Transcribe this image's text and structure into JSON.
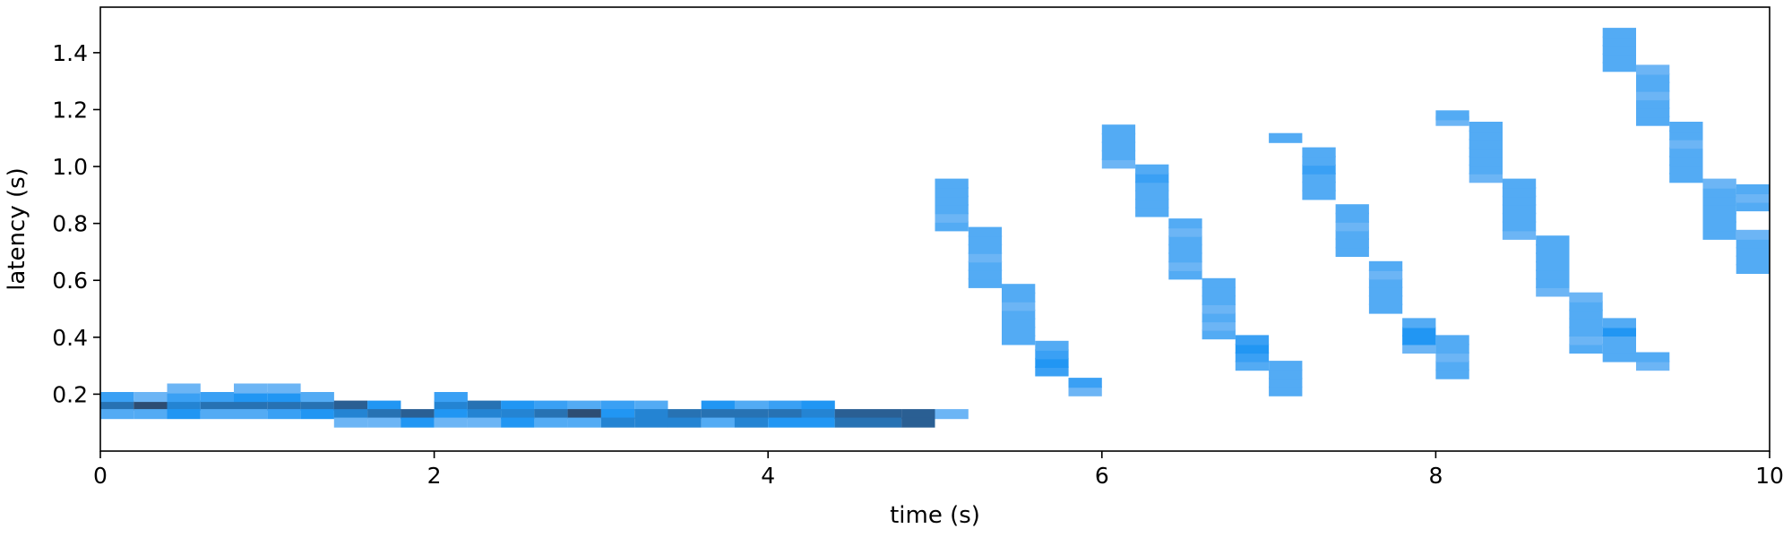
{
  "chart_data": {
    "type": "heatmap",
    "title": "",
    "xlabel": "time (s)",
    "ylabel": "latency (s)",
    "xlim": [
      0,
      10
    ],
    "ylim": [
      0,
      1.56
    ],
    "x_ticks": [
      "0",
      "2",
      "4",
      "6",
      "8",
      "10"
    ],
    "y_ticks": [
      "0.2",
      "0.4",
      "0.6",
      "0.8",
      "1.0",
      "1.2",
      "1.4"
    ],
    "x_tick_values": [
      0,
      2,
      4,
      6,
      8,
      10
    ],
    "y_tick_values": [
      0.2,
      0.4,
      0.6,
      0.8,
      1.0,
      1.2,
      1.4
    ],
    "grid": false,
    "legend": "none",
    "bin_width": 0.2,
    "bin_height": 0.035,
    "cells": [
      [
        0.0,
        0.16,
        0.8
      ],
      [
        0.0,
        0.13,
        0.4
      ],
      [
        0.0,
        0.19,
        0.5
      ],
      [
        0.2,
        0.16,
        1.0
      ],
      [
        0.2,
        0.13,
        0.4
      ],
      [
        0.2,
        0.19,
        0.3
      ],
      [
        0.4,
        0.16,
        0.7
      ],
      [
        0.4,
        0.13,
        0.6
      ],
      [
        0.4,
        0.19,
        0.5
      ],
      [
        0.4,
        0.22,
        0.3
      ],
      [
        0.6,
        0.16,
        0.8
      ],
      [
        0.6,
        0.13,
        0.4
      ],
      [
        0.6,
        0.19,
        0.5
      ],
      [
        0.8,
        0.16,
        0.8
      ],
      [
        0.8,
        0.13,
        0.4
      ],
      [
        0.8,
        0.19,
        0.6
      ],
      [
        0.8,
        0.22,
        0.3
      ],
      [
        1.0,
        0.16,
        0.8
      ],
      [
        1.0,
        0.13,
        0.5
      ],
      [
        1.0,
        0.19,
        0.6
      ],
      [
        1.0,
        0.22,
        0.3
      ],
      [
        1.2,
        0.16,
        0.8
      ],
      [
        1.2,
        0.13,
        0.6
      ],
      [
        1.2,
        0.19,
        0.4
      ],
      [
        1.4,
        0.16,
        0.9
      ],
      [
        1.4,
        0.13,
        0.7
      ],
      [
        1.4,
        0.1,
        0.3
      ],
      [
        1.6,
        0.16,
        0.6
      ],
      [
        1.6,
        0.13,
        0.8
      ],
      [
        1.6,
        0.1,
        0.3
      ],
      [
        1.8,
        0.13,
        0.9
      ],
      [
        1.8,
        0.1,
        0.6
      ],
      [
        2.0,
        0.16,
        0.7
      ],
      [
        2.0,
        0.13,
        0.6
      ],
      [
        2.0,
        0.19,
        0.5
      ],
      [
        2.0,
        0.1,
        0.3
      ],
      [
        2.2,
        0.16,
        0.8
      ],
      [
        2.2,
        0.13,
        0.7
      ],
      [
        2.2,
        0.1,
        0.3
      ],
      [
        2.4,
        0.16,
        0.6
      ],
      [
        2.4,
        0.13,
        0.7
      ],
      [
        2.4,
        0.1,
        0.6
      ],
      [
        2.6,
        0.16,
        0.5
      ],
      [
        2.6,
        0.13,
        0.8
      ],
      [
        2.6,
        0.1,
        0.4
      ],
      [
        2.8,
        0.16,
        0.4
      ],
      [
        2.8,
        0.13,
        1.0
      ],
      [
        2.8,
        0.1,
        0.4
      ],
      [
        3.0,
        0.16,
        0.5
      ],
      [
        3.0,
        0.13,
        0.6
      ],
      [
        3.0,
        0.1,
        0.7
      ],
      [
        3.2,
        0.16,
        0.4
      ],
      [
        3.2,
        0.13,
        0.7
      ],
      [
        3.2,
        0.1,
        0.7
      ],
      [
        3.4,
        0.13,
        0.8
      ],
      [
        3.4,
        0.1,
        0.7
      ],
      [
        3.6,
        0.16,
        0.6
      ],
      [
        3.6,
        0.13,
        0.8
      ],
      [
        3.6,
        0.1,
        0.4
      ],
      [
        3.8,
        0.16,
        0.4
      ],
      [
        3.8,
        0.13,
        0.8
      ],
      [
        3.8,
        0.1,
        0.7
      ],
      [
        4.0,
        0.16,
        0.5
      ],
      [
        4.0,
        0.13,
        0.8
      ],
      [
        4.0,
        0.1,
        0.6
      ],
      [
        4.2,
        0.16,
        0.6
      ],
      [
        4.2,
        0.13,
        0.7
      ],
      [
        4.2,
        0.1,
        0.6
      ],
      [
        4.4,
        0.13,
        0.9
      ],
      [
        4.4,
        0.1,
        0.8
      ],
      [
        4.6,
        0.13,
        0.9
      ],
      [
        4.6,
        0.1,
        0.8
      ],
      [
        4.8,
        0.13,
        0.9
      ],
      [
        4.8,
        0.1,
        0.9
      ],
      [
        5.0,
        0.13,
        0.3
      ],
      [
        5.0,
        0.79,
        0.4
      ],
      [
        5.0,
        0.82,
        0.3
      ],
      [
        5.0,
        0.85,
        0.4
      ],
      [
        5.0,
        0.88,
        0.4
      ],
      [
        5.0,
        0.91,
        0.4
      ],
      [
        5.0,
        0.94,
        0.4
      ],
      [
        5.2,
        0.59,
        0.4
      ],
      [
        5.2,
        0.62,
        0.4
      ],
      [
        5.2,
        0.65,
        0.4
      ],
      [
        5.2,
        0.68,
        0.3
      ],
      [
        5.2,
        0.71,
        0.4
      ],
      [
        5.2,
        0.74,
        0.4
      ],
      [
        5.2,
        0.77,
        0.4
      ],
      [
        5.4,
        0.39,
        0.4
      ],
      [
        5.4,
        0.42,
        0.4
      ],
      [
        5.4,
        0.45,
        0.4
      ],
      [
        5.4,
        0.48,
        0.4
      ],
      [
        5.4,
        0.51,
        0.3
      ],
      [
        5.4,
        0.54,
        0.4
      ],
      [
        5.4,
        0.57,
        0.4
      ],
      [
        5.6,
        0.28,
        0.5
      ],
      [
        5.6,
        0.31,
        0.6
      ],
      [
        5.6,
        0.34,
        0.5
      ],
      [
        5.6,
        0.37,
        0.4
      ],
      [
        5.8,
        0.21,
        0.3
      ],
      [
        5.8,
        0.24,
        0.5
      ],
      [
        6.0,
        1.01,
        0.3
      ],
      [
        6.0,
        1.04,
        0.4
      ],
      [
        6.0,
        1.07,
        0.4
      ],
      [
        6.0,
        1.1,
        0.4
      ],
      [
        6.0,
        1.13,
        0.4
      ],
      [
        6.2,
        0.84,
        0.4
      ],
      [
        6.2,
        0.87,
        0.4
      ],
      [
        6.2,
        0.9,
        0.4
      ],
      [
        6.2,
        0.93,
        0.4
      ],
      [
        6.2,
        0.96,
        0.5
      ],
      [
        6.2,
        0.99,
        0.4
      ],
      [
        6.4,
        0.62,
        0.4
      ],
      [
        6.4,
        0.65,
        0.3
      ],
      [
        6.4,
        0.68,
        0.4
      ],
      [
        6.4,
        0.71,
        0.4
      ],
      [
        6.4,
        0.74,
        0.4
      ],
      [
        6.4,
        0.77,
        0.3
      ],
      [
        6.4,
        0.8,
        0.4
      ],
      [
        6.6,
        0.41,
        0.4
      ],
      [
        6.6,
        0.44,
        0.3
      ],
      [
        6.6,
        0.47,
        0.4
      ],
      [
        6.6,
        0.5,
        0.3
      ],
      [
        6.6,
        0.53,
        0.4
      ],
      [
        6.6,
        0.56,
        0.4
      ],
      [
        6.6,
        0.59,
        0.4
      ],
      [
        6.8,
        0.3,
        0.4
      ],
      [
        6.8,
        0.33,
        0.5
      ],
      [
        6.8,
        0.36,
        0.6
      ],
      [
        6.8,
        0.39,
        0.5
      ],
      [
        7.0,
        0.21,
        0.4
      ],
      [
        7.0,
        0.24,
        0.4
      ],
      [
        7.0,
        0.27,
        0.4
      ],
      [
        7.0,
        0.3,
        0.4
      ],
      [
        7.0,
        1.1,
        0.4
      ],
      [
        7.2,
        0.9,
        0.4
      ],
      [
        7.2,
        0.93,
        0.4
      ],
      [
        7.2,
        0.96,
        0.4
      ],
      [
        7.2,
        0.99,
        0.5
      ],
      [
        7.2,
        1.02,
        0.4
      ],
      [
        7.2,
        1.05,
        0.4
      ],
      [
        7.4,
        0.7,
        0.4
      ],
      [
        7.4,
        0.73,
        0.4
      ],
      [
        7.4,
        0.76,
        0.4
      ],
      [
        7.4,
        0.79,
        0.3
      ],
      [
        7.4,
        0.82,
        0.4
      ],
      [
        7.4,
        0.85,
        0.4
      ],
      [
        7.6,
        0.5,
        0.4
      ],
      [
        7.6,
        0.53,
        0.4
      ],
      [
        7.6,
        0.56,
        0.4
      ],
      [
        7.6,
        0.59,
        0.4
      ],
      [
        7.6,
        0.62,
        0.3
      ],
      [
        7.6,
        0.65,
        0.4
      ],
      [
        7.8,
        0.36,
        0.3
      ],
      [
        7.8,
        0.39,
        0.6
      ],
      [
        7.8,
        0.42,
        0.6
      ],
      [
        7.8,
        0.45,
        0.4
      ],
      [
        8.0,
        0.27,
        0.4
      ],
      [
        8.0,
        0.3,
        0.4
      ],
      [
        8.0,
        0.33,
        0.3
      ],
      [
        8.0,
        0.36,
        0.4
      ],
      [
        8.0,
        0.39,
        0.4
      ],
      [
        8.0,
        1.16,
        0.3
      ],
      [
        8.0,
        1.18,
        0.4
      ],
      [
        8.2,
        0.96,
        0.3
      ],
      [
        8.2,
        0.99,
        0.4
      ],
      [
        8.2,
        1.02,
        0.4
      ],
      [
        8.2,
        1.05,
        0.4
      ],
      [
        8.2,
        1.08,
        0.4
      ],
      [
        8.2,
        1.11,
        0.4
      ],
      [
        8.2,
        1.14,
        0.4
      ],
      [
        8.4,
        0.76,
        0.3
      ],
      [
        8.4,
        0.79,
        0.4
      ],
      [
        8.4,
        0.82,
        0.4
      ],
      [
        8.4,
        0.85,
        0.4
      ],
      [
        8.4,
        0.88,
        0.4
      ],
      [
        8.4,
        0.91,
        0.4
      ],
      [
        8.4,
        0.94,
        0.4
      ],
      [
        8.6,
        0.56,
        0.3
      ],
      [
        8.6,
        0.59,
        0.4
      ],
      [
        8.6,
        0.62,
        0.4
      ],
      [
        8.6,
        0.65,
        0.4
      ],
      [
        8.6,
        0.68,
        0.4
      ],
      [
        8.6,
        0.71,
        0.4
      ],
      [
        8.6,
        0.74,
        0.4
      ],
      [
        8.8,
        0.36,
        0.4
      ],
      [
        8.8,
        0.39,
        0.3
      ],
      [
        8.8,
        0.42,
        0.4
      ],
      [
        8.8,
        0.45,
        0.4
      ],
      [
        8.8,
        0.48,
        0.4
      ],
      [
        8.8,
        0.51,
        0.4
      ],
      [
        8.8,
        0.54,
        0.3
      ],
      [
        9.0,
        0.33,
        0.4
      ],
      [
        9.0,
        0.36,
        0.4
      ],
      [
        9.0,
        0.39,
        0.4
      ],
      [
        9.0,
        0.42,
        0.6
      ],
      [
        9.0,
        0.45,
        0.4
      ],
      [
        9.2,
        0.3,
        0.3
      ],
      [
        9.2,
        0.33,
        0.4
      ],
      [
        9.0,
        1.35,
        0.4
      ],
      [
        9.0,
        1.38,
        0.4
      ],
      [
        9.0,
        1.41,
        0.4
      ],
      [
        9.0,
        1.44,
        0.4
      ],
      [
        9.0,
        1.47,
        0.4
      ],
      [
        9.2,
        1.16,
        0.4
      ],
      [
        9.2,
        1.19,
        0.4
      ],
      [
        9.2,
        1.22,
        0.4
      ],
      [
        9.2,
        1.25,
        0.3
      ],
      [
        9.2,
        1.28,
        0.4
      ],
      [
        9.2,
        1.31,
        0.4
      ],
      [
        9.2,
        1.34,
        0.3
      ],
      [
        9.4,
        0.96,
        0.4
      ],
      [
        9.4,
        0.99,
        0.4
      ],
      [
        9.4,
        1.02,
        0.4
      ],
      [
        9.4,
        1.05,
        0.4
      ],
      [
        9.4,
        1.08,
        0.3
      ],
      [
        9.4,
        1.11,
        0.4
      ],
      [
        9.4,
        1.14,
        0.4
      ],
      [
        9.6,
        0.76,
        0.4
      ],
      [
        9.6,
        0.79,
        0.4
      ],
      [
        9.6,
        0.82,
        0.4
      ],
      [
        9.6,
        0.85,
        0.4
      ],
      [
        9.6,
        0.88,
        0.4
      ],
      [
        9.6,
        0.91,
        0.4
      ],
      [
        9.6,
        0.94,
        0.3
      ],
      [
        9.8,
        0.64,
        0.4
      ],
      [
        9.8,
        0.67,
        0.4
      ],
      [
        9.8,
        0.7,
        0.4
      ],
      [
        9.8,
        0.73,
        0.4
      ],
      [
        9.8,
        0.76,
        0.3
      ],
      [
        9.8,
        0.86,
        0.4
      ],
      [
        9.8,
        0.89,
        0.3
      ],
      [
        9.8,
        0.92,
        0.4
      ]
    ],
    "color_min": "#b7d4f6",
    "color_mid": "#2196f3",
    "color_max": "#2d4d73"
  }
}
